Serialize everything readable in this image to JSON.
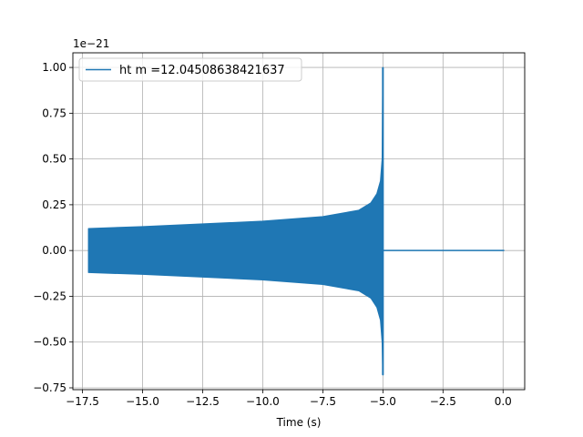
{
  "chart_data": {
    "type": "line",
    "title": "",
    "xlabel": "Time (s)",
    "ylabel": "",
    "y_offset_label": "1e−21",
    "xlim": [
      -17.9,
      0.9
    ],
    "ylim": [
      -0.76,
      1.08
    ],
    "grid": true,
    "legend_position": "upper left",
    "x_ticks": [
      -17.5,
      -15.0,
      -12.5,
      -10.0,
      -7.5,
      -5.0,
      -2.5,
      0.0
    ],
    "x_tick_labels": [
      "−17.5",
      "−15.0",
      "−12.5",
      "−10.0",
      "−7.5",
      "−5.0",
      "−2.5",
      "0.0"
    ],
    "y_ticks": [
      -0.75,
      -0.5,
      -0.25,
      0.0,
      0.25,
      0.5,
      0.75,
      1.0
    ],
    "y_tick_labels": [
      "−0.75",
      "−0.50",
      "−0.25",
      "0.00",
      "0.25",
      "0.50",
      "0.75",
      "1.00"
    ],
    "series": [
      {
        "name": "ht m =12.04508638421637",
        "color": "#1f77b4",
        "inspiral_start": -17.25,
        "merger_time": -5.0,
        "end_time": 0.05,
        "envelope_upper": [
          [
            -17.25,
            0.12
          ],
          [
            -15.0,
            0.13
          ],
          [
            -12.5,
            0.145
          ],
          [
            -10.0,
            0.16
          ],
          [
            -7.5,
            0.185
          ],
          [
            -6.0,
            0.22
          ],
          [
            -5.5,
            0.26
          ],
          [
            -5.25,
            0.31
          ],
          [
            -5.1,
            0.38
          ],
          [
            -5.03,
            0.5
          ],
          [
            -5.0,
            1.0
          ]
        ],
        "envelope_lower": [
          [
            -17.25,
            -0.12
          ],
          [
            -15.0,
            -0.13
          ],
          [
            -12.5,
            -0.145
          ],
          [
            -10.0,
            -0.16
          ],
          [
            -7.5,
            -0.185
          ],
          [
            -6.0,
            -0.22
          ],
          [
            -5.5,
            -0.26
          ],
          [
            -5.25,
            -0.31
          ],
          [
            -5.1,
            -0.38
          ],
          [
            -5.03,
            -0.5
          ],
          [
            -5.0,
            -0.68
          ]
        ],
        "post_merger_value": 0.0
      }
    ]
  }
}
